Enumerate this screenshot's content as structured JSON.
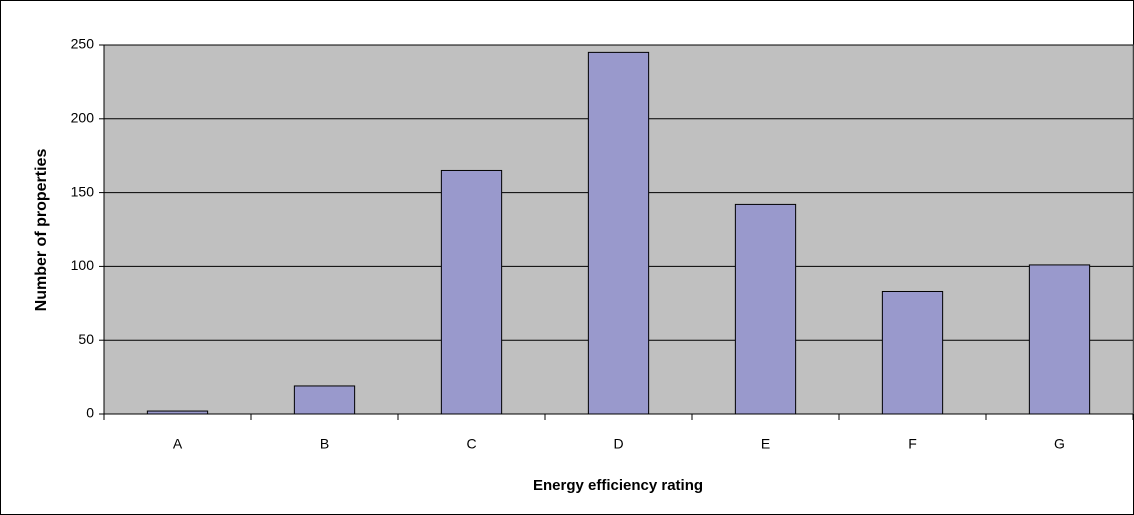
{
  "chart_data": {
    "type": "bar",
    "categories": [
      "A",
      "B",
      "C",
      "D",
      "E",
      "F",
      "G"
    ],
    "values": [
      2,
      19,
      165,
      245,
      142,
      83,
      101
    ],
    "color": "#9999cc",
    "xlabel": "Energy efficiency rating",
    "ylabel": "Number of properties",
    "ylim": [
      0,
      250
    ],
    "yticks": [
      0,
      50,
      100,
      150,
      200,
      250
    ],
    "grid": true
  }
}
